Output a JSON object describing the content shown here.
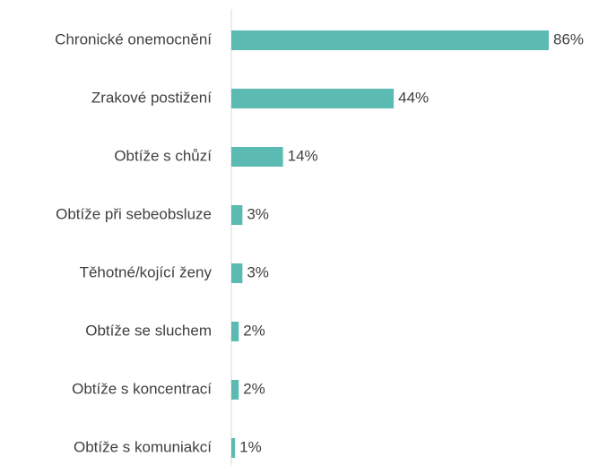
{
  "chart_data": {
    "type": "bar",
    "orientation": "horizontal",
    "categories": [
      "Chronické onemocnění",
      "Zrakové postižení",
      "Obtíže s chůzí",
      "Obtíže při sebeobsluze",
      "Těhotné/kojící ženy",
      "Obtíže se sluchem",
      "Obtíže s koncentrací",
      "Obtíže s komuniakcí"
    ],
    "values": [
      86,
      44,
      14,
      3,
      3,
      2,
      2,
      1
    ],
    "value_labels": [
      "86%",
      "44%",
      "14%",
      "3%",
      "3%",
      "2%",
      "2%",
      "1%"
    ],
    "color": "#5bbab1"
  }
}
